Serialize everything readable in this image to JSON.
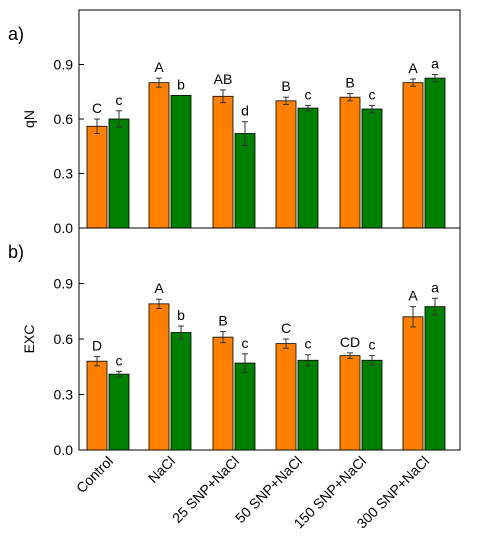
{
  "chart_data": [
    {
      "type": "bar",
      "panel_label": "a)",
      "ylabel": "qN",
      "ylim": [
        0,
        1.2
      ],
      "yticks": [
        "0.0",
        "0.3",
        "0.6",
        "0.9"
      ],
      "categories": [
        "Control",
        "NaCl",
        "25 SNP+NaCl",
        "50 SNP+NaCl",
        "150 SNP+NaCl",
        "300 SNP+NaCl"
      ],
      "colors": [
        "#ff8000",
        "#008000"
      ],
      "series": [
        {
          "values": [
            0.56,
            0.8,
            0.725,
            0.7,
            0.72,
            0.8
          ],
          "errors": [
            0.04,
            0.025,
            0.035,
            0.02,
            0.02,
            0.02
          ],
          "labels": [
            "C",
            "A",
            "AB",
            "B",
            "B",
            "A"
          ]
        },
        {
          "values": [
            0.6,
            0.73,
            0.52,
            0.66,
            0.655,
            0.825
          ],
          "errors": [
            0.045,
            0.0,
            0.065,
            0.015,
            0.02,
            0.02
          ],
          "labels": [
            "c",
            "b",
            "d",
            "c",
            "c",
            "a"
          ]
        }
      ]
    },
    {
      "type": "bar",
      "panel_label": "b)",
      "ylabel": "EXC",
      "ylim": [
        0,
        1.2
      ],
      "yticks": [
        "0.0",
        "0.3",
        "0.6",
        "0.9"
      ],
      "categories": [
        "Control",
        "NaCl",
        "25 SNP+NaCl",
        "50 SNP+NaCl",
        "150 SNP+NaCl",
        "300 SNP+NaCl"
      ],
      "colors": [
        "#ff8000",
        "#008000"
      ],
      "series": [
        {
          "values": [
            0.48,
            0.79,
            0.61,
            0.575,
            0.51,
            0.72
          ],
          "errors": [
            0.025,
            0.025,
            0.03,
            0.025,
            0.015,
            0.055
          ],
          "labels": [
            "D",
            "A",
            "B",
            "C",
            "CD",
            "A"
          ]
        },
        {
          "values": [
            0.41,
            0.635,
            0.47,
            0.485,
            0.485,
            0.775
          ],
          "errors": [
            0.015,
            0.035,
            0.05,
            0.03,
            0.025,
            0.045
          ],
          "labels": [
            "c",
            "b",
            "c",
            "c",
            "c",
            "a"
          ]
        }
      ]
    }
  ]
}
